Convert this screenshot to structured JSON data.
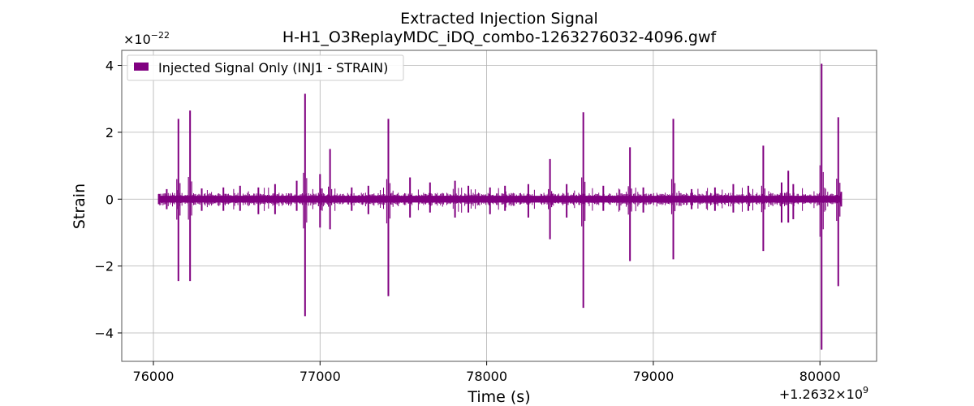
{
  "chart_data": {
    "type": "line",
    "title": "Extracted Injection Signal",
    "subtitle": "H-H1_O3ReplayMDC_iDQ_combo-1263276032-4096.gwf",
    "xlabel": "Time (s)",
    "ylabel": "Strain",
    "x_offset_label": "+1.2632×10",
    "x_offset_exp": "9",
    "y_scale_label": "×10",
    "y_scale_exp": "−22",
    "xlim": [
      75810,
      80340
    ],
    "ylim": [
      -4.85,
      4.45
    ],
    "xticks": [
      76000,
      77000,
      78000,
      79000,
      80000
    ],
    "xtick_labels": [
      "76000",
      "77000",
      "78000",
      "79000",
      "80000"
    ],
    "yticks": [
      -4,
      -2,
      0,
      2,
      4
    ],
    "ytick_labels": [
      "−4",
      "−2",
      "0",
      "2",
      "4"
    ],
    "grid": true,
    "legend_position": "top-left",
    "color": "#800080",
    "series": [
      {
        "name": "Injected Signal Only (INJ1 - STRAIN)",
        "x_range": [
          76032,
          80128
        ],
        "baseline_band": [
          -0.1,
          0.1
        ],
        "spikes": [
          {
            "x": 76150,
            "ymax": 2.4,
            "ymin": -2.45
          },
          {
            "x": 76220,
            "ymax": 2.65,
            "ymin": -2.45
          },
          {
            "x": 76910,
            "ymax": 3.15,
            "ymin": -3.5
          },
          {
            "x": 77410,
            "ymax": 2.4,
            "ymin": -2.9
          },
          {
            "x": 78580,
            "ymax": 2.6,
            "ymin": -3.25
          },
          {
            "x": 79120,
            "ymax": 2.4,
            "ymin": -1.8
          },
          {
            "x": 80010,
            "ymax": 4.05,
            "ymin": -4.5
          },
          {
            "x": 80110,
            "ymax": 2.45,
            "ymin": -2.6
          },
          {
            "x": 77060,
            "ymax": 1.5,
            "ymin": -0.9
          },
          {
            "x": 76860,
            "ymax": 0.55,
            "ymin": -0.35
          },
          {
            "x": 77000,
            "ymax": 0.75,
            "ymin": -0.85
          },
          {
            "x": 78380,
            "ymax": 1.2,
            "ymin": -1.2
          },
          {
            "x": 78860,
            "ymax": 1.55,
            "ymin": -1.85
          },
          {
            "x": 79660,
            "ymax": 1.6,
            "ymin": -1.55
          },
          {
            "x": 79810,
            "ymax": 0.85,
            "ymin": -0.7
          },
          {
            "x": 79770,
            "ymax": 0.5,
            "ymin": -0.7
          },
          {
            "x": 79840,
            "ymax": 0.45,
            "ymin": -0.6
          },
          {
            "x": 76080,
            "ymax": 0.3,
            "ymin": -0.3
          },
          {
            "x": 76290,
            "ymax": 0.32,
            "ymin": -0.35
          },
          {
            "x": 76420,
            "ymax": 0.35,
            "ymin": -0.35
          },
          {
            "x": 76520,
            "ymax": 0.4,
            "ymin": -0.35
          },
          {
            "x": 76630,
            "ymax": 0.35,
            "ymin": -0.45
          },
          {
            "x": 76730,
            "ymax": 0.45,
            "ymin": -0.45
          },
          {
            "x": 77190,
            "ymax": 0.35,
            "ymin": -0.35
          },
          {
            "x": 77290,
            "ymax": 0.4,
            "ymin": -0.45
          },
          {
            "x": 77540,
            "ymax": 0.65,
            "ymin": -0.55
          },
          {
            "x": 77660,
            "ymax": 0.5,
            "ymin": -0.4
          },
          {
            "x": 77810,
            "ymax": 0.55,
            "ymin": -0.55
          },
          {
            "x": 77890,
            "ymax": 0.4,
            "ymin": -0.4
          },
          {
            "x": 78020,
            "ymax": 0.35,
            "ymin": -0.45
          },
          {
            "x": 78110,
            "ymax": 0.4,
            "ymin": -0.35
          },
          {
            "x": 78250,
            "ymax": 0.45,
            "ymin": -0.55
          },
          {
            "x": 78480,
            "ymax": 0.45,
            "ymin": -0.55
          },
          {
            "x": 78700,
            "ymax": 0.4,
            "ymin": -0.35
          },
          {
            "x": 78940,
            "ymax": 0.35,
            "ymin": -0.4
          },
          {
            "x": 79230,
            "ymax": 0.3,
            "ymin": -0.3
          },
          {
            "x": 79370,
            "ymax": 0.35,
            "ymin": -0.35
          },
          {
            "x": 79480,
            "ymax": 0.45,
            "ymin": -0.4
          },
          {
            "x": 79570,
            "ymax": 0.4,
            "ymin": -0.35
          }
        ]
      }
    ]
  }
}
